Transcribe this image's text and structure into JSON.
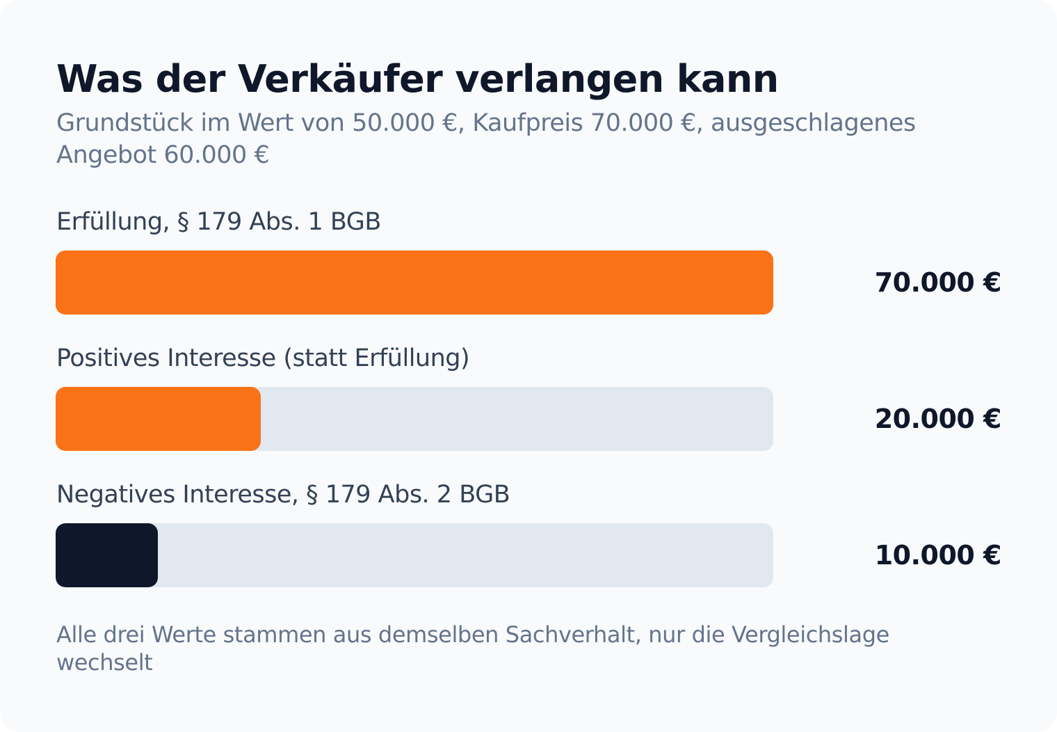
{
  "chart_data": {
    "type": "bar",
    "orientation": "horizontal",
    "title": "Was der Verkäufer verlangen kann",
    "subtitle": "Grundstück im Wert von 50.000 €, Kaufpreis 70.000 €, ausgeschlagenes Angebot 60.000 €",
    "categories": [
      "Erfüllung, § 179 Abs. 1 BGB",
      "Positives Interesse (statt Erfüllung)",
      "Negatives Interesse, § 179 Abs. 2 BGB"
    ],
    "values": [
      70000,
      20000,
      10000
    ],
    "value_labels": [
      "70.000 €",
      "20.000 €",
      "10.000 €"
    ],
    "max": 70000,
    "colors": [
      "#f97316",
      "#f97316",
      "#0f172a"
    ],
    "track_color": "#e2e8f0",
    "footnote": "Alle drei Werte stammen aus demselben Sachverhalt, nur die Vergleichslage wechselt"
  }
}
